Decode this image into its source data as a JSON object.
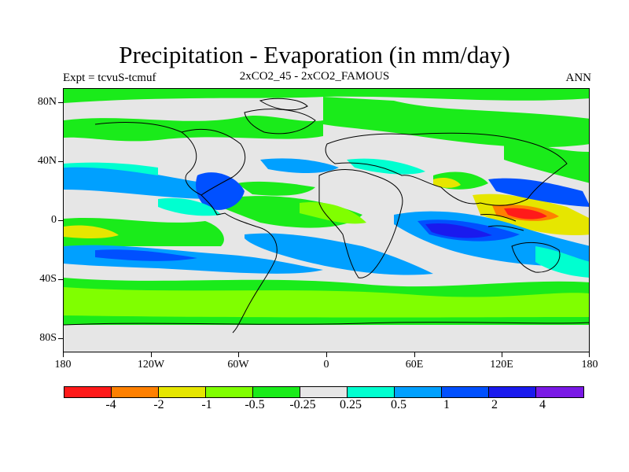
{
  "header": {
    "title": "Precipitation - Evaporation (in mm/day)",
    "left": "Expt = tcvuS-tcmuf",
    "center": "2xCO2_45 - 2xCO2_FAMOUS",
    "right": "ANN"
  },
  "map": {
    "lat_labels": [
      "80N",
      "40N",
      "0",
      "40S",
      "80S"
    ],
    "lon_labels": [
      "180",
      "120W",
      "60W",
      "0",
      "60E",
      "120E",
      "180"
    ],
    "background_color": "#e6e6e6",
    "coastline_color": "#000000"
  },
  "legend": {
    "colors": [
      "#ff1a1a",
      "#ff8000",
      "#e6e600",
      "#80ff00",
      "#1aeb1a",
      "#e6e6e6",
      "#00ffd0",
      "#00a0ff",
      "#0050ff",
      "#1a1aee",
      "#7a19e6"
    ],
    "labels": [
      "-4",
      "-2",
      "-1",
      "-0.5",
      "-0.25",
      "0.25",
      "0.5",
      "1",
      "2",
      "4"
    ]
  }
}
